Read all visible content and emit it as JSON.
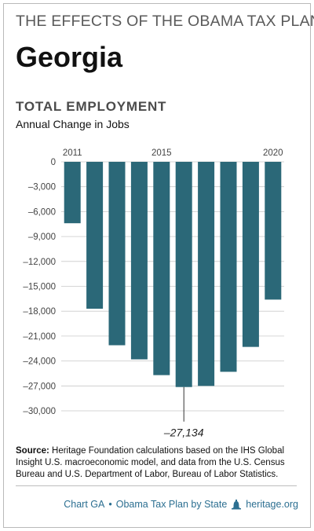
{
  "header": {
    "kicker": "THE EFFECTS OF THE OBAMA TAX PLAN",
    "state": "Georgia"
  },
  "chart": {
    "title": "TOTAL EMPLOYMENT",
    "subtitle": "Annual Change in Jobs",
    "min_label": "–27,134"
  },
  "source": {
    "label": "Source:",
    "text": "Heritage Foundation calculations based on the IHS Global Insight U.S. macroeconomic model, and data from the U.S. Census Bureau and U.S. Department of Labor, Bureau of Labor Statistics."
  },
  "footer": {
    "chart_id": "Chart GA",
    "bullet": "•",
    "series": "Obama Tax Plan by State",
    "icon": "liberty-bell-icon",
    "site": "heritage.org"
  },
  "colors": {
    "bar": "#2b6878",
    "accent": "#2c6f91"
  },
  "chart_data": {
    "type": "bar",
    "title": "TOTAL EMPLOYMENT",
    "subtitle": "Annual Change in Jobs",
    "categories": [
      "2011",
      "2012",
      "2013",
      "2014",
      "2015",
      "2016",
      "2017",
      "2018",
      "2019",
      "2020"
    ],
    "x_tick_labels": [
      "2011",
      "2015",
      "2020"
    ],
    "values": [
      -7400,
      -17700,
      -22100,
      -23800,
      -25700,
      -27134,
      -27000,
      -25300,
      -22300,
      -16600
    ],
    "y_ticks": [
      0,
      -3000,
      -6000,
      -9000,
      -12000,
      -15000,
      -18000,
      -21000,
      -24000,
      -27000,
      -30000
    ],
    "y_tick_labels": [
      "0",
      "–3,000",
      "–6,000",
      "–9,000",
      "–12,000",
      "–15,000",
      "–18,000",
      "–21,000",
      "–24,000",
      "–27,000",
      "–30,000"
    ],
    "ylim": [
      -31000,
      0
    ],
    "annotation": {
      "category": "2016",
      "text": "–27,134"
    },
    "grid": true,
    "legend": "none"
  }
}
